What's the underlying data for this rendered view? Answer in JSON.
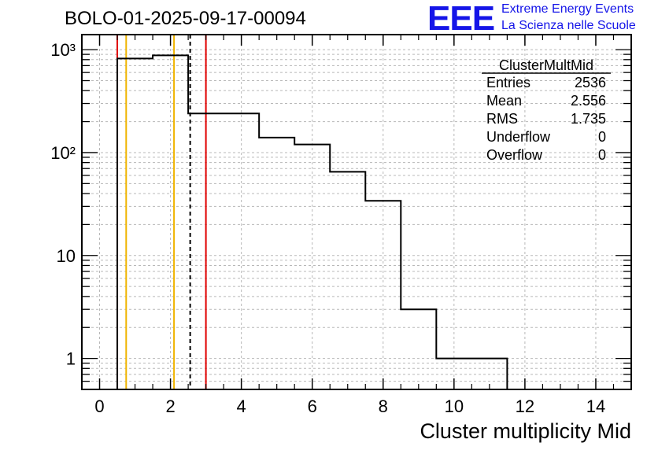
{
  "title": "BOLO-01-2025-09-17-00094",
  "logo": {
    "text": "EEE",
    "line1": "Extreme Energy Events",
    "line2": "La Scienza nelle Scuole",
    "color": "#1515e8"
  },
  "chart_data": {
    "type": "bar",
    "style": "step-histogram",
    "xlabel": "Cluster multiplicity Mid",
    "ylabel": "",
    "yscale": "log",
    "xlim": [
      -0.5,
      15.0
    ],
    "ylim": [
      0.5,
      1400
    ],
    "grid": true,
    "x_ticks": [
      0,
      2,
      4,
      6,
      8,
      10,
      12,
      14
    ],
    "x_tick_labels": [
      "0",
      "2",
      "4",
      "6",
      "8",
      "10",
      "12",
      "14"
    ],
    "y_ticks": [
      1,
      10,
      100,
      1000
    ],
    "y_tick_labels": [
      "1",
      "10",
      "10²",
      "10³"
    ],
    "bin_width": 1,
    "bin_centers": [
      0,
      1,
      2,
      3,
      4,
      5,
      6,
      7,
      8,
      9,
      10,
      11,
      12,
      13,
      14
    ],
    "values": [
      0,
      820,
      880,
      240,
      240,
      140,
      120,
      65,
      34,
      3,
      1,
      1,
      0,
      0,
      0
    ],
    "vertical_lines": [
      {
        "x": 0.5,
        "color": "#e00000",
        "style": "solid"
      },
      {
        "x": 0.75,
        "color": "#f0b400",
        "style": "solid"
      },
      {
        "x": 2.1,
        "color": "#f0b400",
        "style": "solid"
      },
      {
        "x": 2.556,
        "color": "#000000",
        "style": "dashed"
      },
      {
        "x": 3.0,
        "color": "#e00000",
        "style": "solid"
      }
    ],
    "stats": {
      "name": "ClusterMultMid",
      "rows": [
        {
          "label": "Entries",
          "value": "2536"
        },
        {
          "label": "Mean",
          "value": "2.556"
        },
        {
          "label": "RMS",
          "value": "1.735"
        },
        {
          "label": "Underflow",
          "value": "0"
        },
        {
          "label": "Overflow",
          "value": "0"
        }
      ]
    }
  }
}
